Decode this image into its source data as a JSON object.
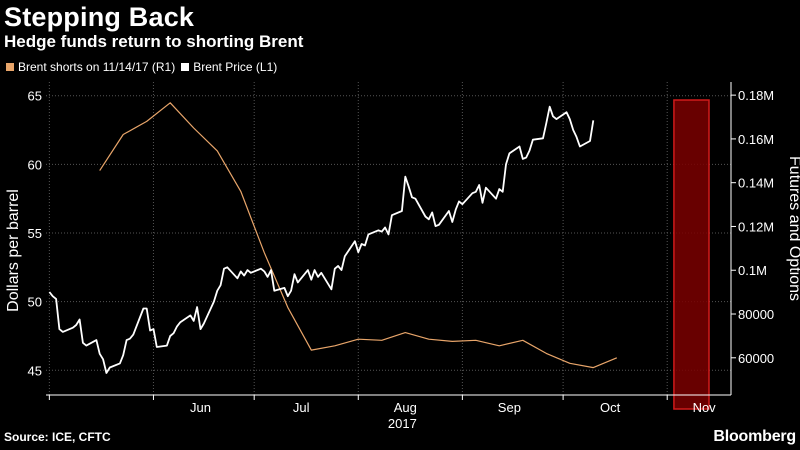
{
  "header": {
    "title": "Stepping Back",
    "subtitle": "Hedge funds return to shorting Brent"
  },
  "footer": {
    "source": "Source: ICE, CFTC",
    "brand": "Bloomberg"
  },
  "colors": {
    "background": "#000000",
    "shorts_line": "#e8a56a",
    "price_line": "#ffffff",
    "grid": "#555555",
    "highlight_fill": "#7a0000",
    "highlight_border": "#d11a1a"
  },
  "chart_data": {
    "type": "line",
    "title": "Stepping Back",
    "subtitle": "Hedge funds return to shorting Brent",
    "year_label": "2017",
    "x_ticks": [
      "Jun",
      "Jul",
      "Aug",
      "Sep",
      "Oct",
      "Nov"
    ],
    "left_axis": {
      "label": "Dollars per barrel",
      "ylim": [
        43.2,
        66
      ],
      "ticks": [
        45,
        50,
        55,
        60,
        65
      ],
      "tick_labels": [
        "45",
        "50",
        "55",
        "60",
        "65"
      ]
    },
    "right_axis": {
      "label": "Futures and Options",
      "ylim": [
        43000,
        186000
      ],
      "ticks": [
        60000,
        80000,
        100000,
        120000,
        140000,
        160000,
        180000
      ],
      "tick_labels": [
        "60000",
        "80000",
        "0.1M",
        "0.12M",
        "0.14M",
        "0.16M",
        "0.18M"
      ]
    },
    "highlight": {
      "x_start": "2017-11-03",
      "x_end": "2017-11-20"
    },
    "grid": true,
    "legend_position": "top-left",
    "series": [
      {
        "name": "Brent shorts on 11/14/17 (R1)",
        "axis": "right",
        "color": "#e8a56a",
        "points": [
          [
            "2017-05-16",
            145500
          ],
          [
            "2017-05-23",
            162000
          ],
          [
            "2017-05-30",
            168000
          ],
          [
            "2017-06-06",
            176500
          ],
          [
            "2017-06-13",
            165000
          ],
          [
            "2017-06-20",
            154500
          ],
          [
            "2017-06-27",
            136000
          ],
          [
            "2017-07-04",
            108000
          ],
          [
            "2017-07-11",
            83000
          ],
          [
            "2017-07-18",
            63500
          ],
          [
            "2017-07-25",
            65500
          ],
          [
            "2017-08-01",
            68500
          ],
          [
            "2017-08-08",
            68000
          ],
          [
            "2017-08-15",
            71500
          ],
          [
            "2017-08-22",
            68500
          ],
          [
            "2017-08-29",
            67500
          ],
          [
            "2017-09-05",
            68000
          ],
          [
            "2017-09-12",
            65500
          ],
          [
            "2017-09-19",
            68000
          ],
          [
            "2017-09-26",
            62000
          ],
          [
            "2017-10-03",
            57500
          ],
          [
            "2017-10-10",
            55500
          ],
          [
            "2017-10-17",
            60000
          ]
        ]
      },
      {
        "name": "Brent Price (L1)",
        "axis": "left",
        "color": "#ffffff",
        "points": [
          [
            "2017-05-01",
            50.7
          ],
          [
            "2017-05-02",
            50.4
          ],
          [
            "2017-05-03",
            50.2
          ],
          [
            "2017-05-04",
            48.0
          ],
          [
            "2017-05-05",
            47.8
          ],
          [
            "2017-05-08",
            48.1
          ],
          [
            "2017-05-09",
            48.3
          ],
          [
            "2017-05-10",
            48.7
          ],
          [
            "2017-05-11",
            47.0
          ],
          [
            "2017-05-12",
            46.8
          ],
          [
            "2017-05-15",
            47.2
          ],
          [
            "2017-05-16",
            46.2
          ],
          [
            "2017-05-17",
            45.8
          ],
          [
            "2017-05-18",
            44.8
          ],
          [
            "2017-05-19",
            45.2
          ],
          [
            "2017-05-22",
            45.5
          ],
          [
            "2017-05-23",
            46.1
          ],
          [
            "2017-05-24",
            47.2
          ],
          [
            "2017-05-25",
            47.3
          ],
          [
            "2017-05-26",
            47.6
          ],
          [
            "2017-05-29",
            49.5
          ],
          [
            "2017-05-30",
            49.5
          ],
          [
            "2017-05-31",
            47.9
          ],
          [
            "2017-06-01",
            48.0
          ],
          [
            "2017-06-02",
            46.7
          ],
          [
            "2017-06-05",
            46.8
          ],
          [
            "2017-06-06",
            47.5
          ],
          [
            "2017-06-07",
            47.7
          ],
          [
            "2017-06-08",
            48.2
          ],
          [
            "2017-06-09",
            48.5
          ],
          [
            "2017-06-12",
            49.0
          ],
          [
            "2017-06-13",
            48.6
          ],
          [
            "2017-06-14",
            49.6
          ],
          [
            "2017-06-15",
            48.0
          ],
          [
            "2017-06-16",
            48.4
          ],
          [
            "2017-06-19",
            50.0
          ],
          [
            "2017-06-20",
            50.8
          ],
          [
            "2017-06-21",
            51.2
          ],
          [
            "2017-06-22",
            52.4
          ],
          [
            "2017-06-23",
            52.5
          ],
          [
            "2017-06-26",
            51.7
          ],
          [
            "2017-06-27",
            52.2
          ],
          [
            "2017-06-28",
            51.9
          ],
          [
            "2017-06-29",
            52.3
          ],
          [
            "2017-06-30",
            52.1
          ],
          [
            "2017-07-03",
            52.4
          ],
          [
            "2017-07-04",
            52.2
          ],
          [
            "2017-07-05",
            51.8
          ],
          [
            "2017-07-06",
            52.3
          ],
          [
            "2017-07-07",
            50.8
          ],
          [
            "2017-07-10",
            51.0
          ],
          [
            "2017-07-11",
            50.4
          ],
          [
            "2017-07-12",
            50.8
          ],
          [
            "2017-07-13",
            52.0
          ],
          [
            "2017-07-14",
            51.4
          ],
          [
            "2017-07-17",
            52.3
          ],
          [
            "2017-07-18",
            51.6
          ],
          [
            "2017-07-19",
            52.3
          ],
          [
            "2017-07-20",
            51.8
          ],
          [
            "2017-07-21",
            52.1
          ],
          [
            "2017-07-24",
            50.9
          ],
          [
            "2017-07-25",
            52.4
          ],
          [
            "2017-07-26",
            52.6
          ],
          [
            "2017-07-27",
            52.3
          ],
          [
            "2017-07-28",
            53.3
          ],
          [
            "2017-07-31",
            54.4
          ],
          [
            "2017-08-01",
            53.6
          ],
          [
            "2017-08-02",
            54.2
          ],
          [
            "2017-08-03",
            54.1
          ],
          [
            "2017-08-04",
            54.9
          ],
          [
            "2017-08-07",
            55.2
          ],
          [
            "2017-08-08",
            55.1
          ],
          [
            "2017-08-09",
            55.4
          ],
          [
            "2017-08-10",
            54.9
          ],
          [
            "2017-08-11",
            56.3
          ],
          [
            "2017-08-14",
            56.6
          ],
          [
            "2017-08-15",
            59.1
          ],
          [
            "2017-08-16",
            58.4
          ],
          [
            "2017-08-17",
            57.6
          ],
          [
            "2017-08-18",
            57.5
          ],
          [
            "2017-08-21",
            56.2
          ],
          [
            "2017-08-22",
            56.0
          ],
          [
            "2017-08-23",
            56.5
          ],
          [
            "2017-08-24",
            55.5
          ],
          [
            "2017-08-25",
            55.6
          ],
          [
            "2017-08-28",
            56.6
          ],
          [
            "2017-08-29",
            55.8
          ],
          [
            "2017-08-30",
            56.7
          ],
          [
            "2017-08-31",
            57.3
          ],
          [
            "2017-09-01",
            57.1
          ],
          [
            "2017-09-04",
            57.9
          ],
          [
            "2017-09-05",
            58.0
          ],
          [
            "2017-09-06",
            58.5
          ],
          [
            "2017-09-07",
            57.2
          ],
          [
            "2017-09-08",
            58.3
          ],
          [
            "2017-09-11",
            57.5
          ],
          [
            "2017-09-12",
            58.2
          ],
          [
            "2017-09-13",
            58.0
          ],
          [
            "2017-09-14",
            60.0
          ],
          [
            "2017-09-15",
            60.8
          ],
          [
            "2017-09-18",
            61.3
          ],
          [
            "2017-09-19",
            60.4
          ],
          [
            "2017-09-20",
            60.5
          ],
          [
            "2017-09-21",
            61.0
          ],
          [
            "2017-09-22",
            61.8
          ],
          [
            "2017-09-25",
            61.9
          ],
          [
            "2017-09-26",
            63.0
          ],
          [
            "2017-09-27",
            64.2
          ],
          [
            "2017-09-28",
            63.5
          ],
          [
            "2017-09-29",
            63.3
          ],
          [
            "2017-10-02",
            63.8
          ],
          [
            "2017-10-03",
            63.3
          ],
          [
            "2017-10-04",
            62.5
          ],
          [
            "2017-10-05",
            62.0
          ],
          [
            "2017-10-06",
            61.3
          ],
          [
            "2017-10-09",
            61.7
          ],
          [
            "2017-10-10",
            63.2
          ]
        ]
      }
    ]
  }
}
